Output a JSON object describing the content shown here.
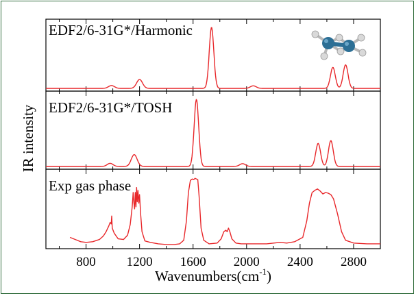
{
  "chart_data": {
    "type": "line",
    "xlabel_main": "Wavenumbers(cm",
    "xlabel_sup": "-1",
    "xlabel_end": ")",
    "ylabel": "IR intensity",
    "xlim": [
      500,
      3000
    ],
    "xticks": [
      800,
      1200,
      1600,
      2000,
      2400,
      2800
    ],
    "color": "#e8272a",
    "panels": [
      {
        "label": "EDF2/6-31G*/Harmonic",
        "ymax": 1.0,
        "baseline_from": 500,
        "peaks": [
          {
            "x": 990,
            "h": 0.045,
            "w": 22
          },
          {
            "x": 1200,
            "h": 0.14,
            "w": 22
          },
          {
            "x": 1738,
            "h": 0.96,
            "w": 17
          },
          {
            "x": 2050,
            "h": 0.04,
            "w": 22
          },
          {
            "x": 2645,
            "h": 0.33,
            "w": 18
          },
          {
            "x": 2740,
            "h": 0.37,
            "w": 18
          }
        ]
      },
      {
        "label": "EDF2/6-31G*/TOSH",
        "ymax": 1.0,
        "baseline_from": 500,
        "peaks": [
          {
            "x": 980,
            "h": 0.045,
            "w": 22
          },
          {
            "x": 1160,
            "h": 0.17,
            "w": 22
          },
          {
            "x": 1625,
            "h": 0.96,
            "w": 17
          },
          {
            "x": 1970,
            "h": 0.04,
            "w": 22
          },
          {
            "x": 2535,
            "h": 0.33,
            "w": 18
          },
          {
            "x": 2630,
            "h": 0.37,
            "w": 18
          }
        ]
      },
      {
        "label": "Exp gas phase",
        "ymax": 1.0,
        "baseline_from": 680,
        "points": [
          [
            680,
            0.12
          ],
          [
            720,
            0.09
          ],
          [
            760,
            0.06
          ],
          [
            800,
            0.05
          ],
          [
            850,
            0.06
          ],
          [
            900,
            0.09
          ],
          [
            930,
            0.14
          ],
          [
            950,
            0.2
          ],
          [
            970,
            0.28
          ],
          [
            980,
            0.33
          ],
          [
            988,
            0.31
          ],
          [
            992,
            0.42
          ],
          [
            996,
            0.25
          ],
          [
            1010,
            0.18
          ],
          [
            1040,
            0.1
          ],
          [
            1080,
            0.09
          ],
          [
            1110,
            0.15
          ],
          [
            1130,
            0.3
          ],
          [
            1145,
            0.55
          ],
          [
            1152,
            0.75
          ],
          [
            1158,
            0.6
          ],
          [
            1163,
            0.52
          ],
          [
            1168,
            0.75
          ],
          [
            1173,
            0.55
          ],
          [
            1178,
            0.82
          ],
          [
            1183,
            0.62
          ],
          [
            1188,
            0.78
          ],
          [
            1194,
            0.6
          ],
          [
            1200,
            0.72
          ],
          [
            1208,
            0.45
          ],
          [
            1218,
            0.2
          ],
          [
            1240,
            0.07
          ],
          [
            1280,
            0.05
          ],
          [
            1340,
            0.03
          ],
          [
            1400,
            0.02
          ],
          [
            1460,
            0.02
          ],
          [
            1500,
            0.03
          ],
          [
            1530,
            0.08
          ],
          [
            1550,
            0.35
          ],
          [
            1565,
            0.75
          ],
          [
            1580,
            0.92
          ],
          [
            1595,
            0.94
          ],
          [
            1605,
            0.93
          ],
          [
            1615,
            0.95
          ],
          [
            1625,
            0.94
          ],
          [
            1635,
            0.93
          ],
          [
            1645,
            0.7
          ],
          [
            1660,
            0.25
          ],
          [
            1680,
            0.08
          ],
          [
            1720,
            0.03
          ],
          [
            1780,
            0.04
          ],
          [
            1810,
            0.1
          ],
          [
            1830,
            0.2
          ],
          [
            1845,
            0.22
          ],
          [
            1855,
            0.2
          ],
          [
            1865,
            0.25
          ],
          [
            1875,
            0.2
          ],
          [
            1890,
            0.1
          ],
          [
            1920,
            0.04
          ],
          [
            1960,
            0.03
          ],
          [
            2050,
            0.03
          ],
          [
            2150,
            0.03
          ],
          [
            2250,
            0.05
          ],
          [
            2300,
            0.04
          ],
          [
            2360,
            0.06
          ],
          [
            2420,
            0.12
          ],
          [
            2450,
            0.35
          ],
          [
            2470,
            0.6
          ],
          [
            2490,
            0.75
          ],
          [
            2510,
            0.78
          ],
          [
            2530,
            0.8
          ],
          [
            2550,
            0.77
          ],
          [
            2570,
            0.73
          ],
          [
            2590,
            0.75
          ],
          [
            2610,
            0.74
          ],
          [
            2630,
            0.72
          ],
          [
            2650,
            0.66
          ],
          [
            2680,
            0.45
          ],
          [
            2710,
            0.2
          ],
          [
            2740,
            0.08
          ],
          [
            2800,
            0.04
          ],
          [
            2900,
            0.03
          ],
          [
            3000,
            0.03
          ]
        ]
      }
    ]
  },
  "colors": {
    "frame": "#2f6b3a",
    "spectrum": "#e8272a",
    "atom_heavy": "#2c6f95",
    "atom_h": "#d9d9d9"
  },
  "icons": [
    "molecule-structure-icon"
  ]
}
